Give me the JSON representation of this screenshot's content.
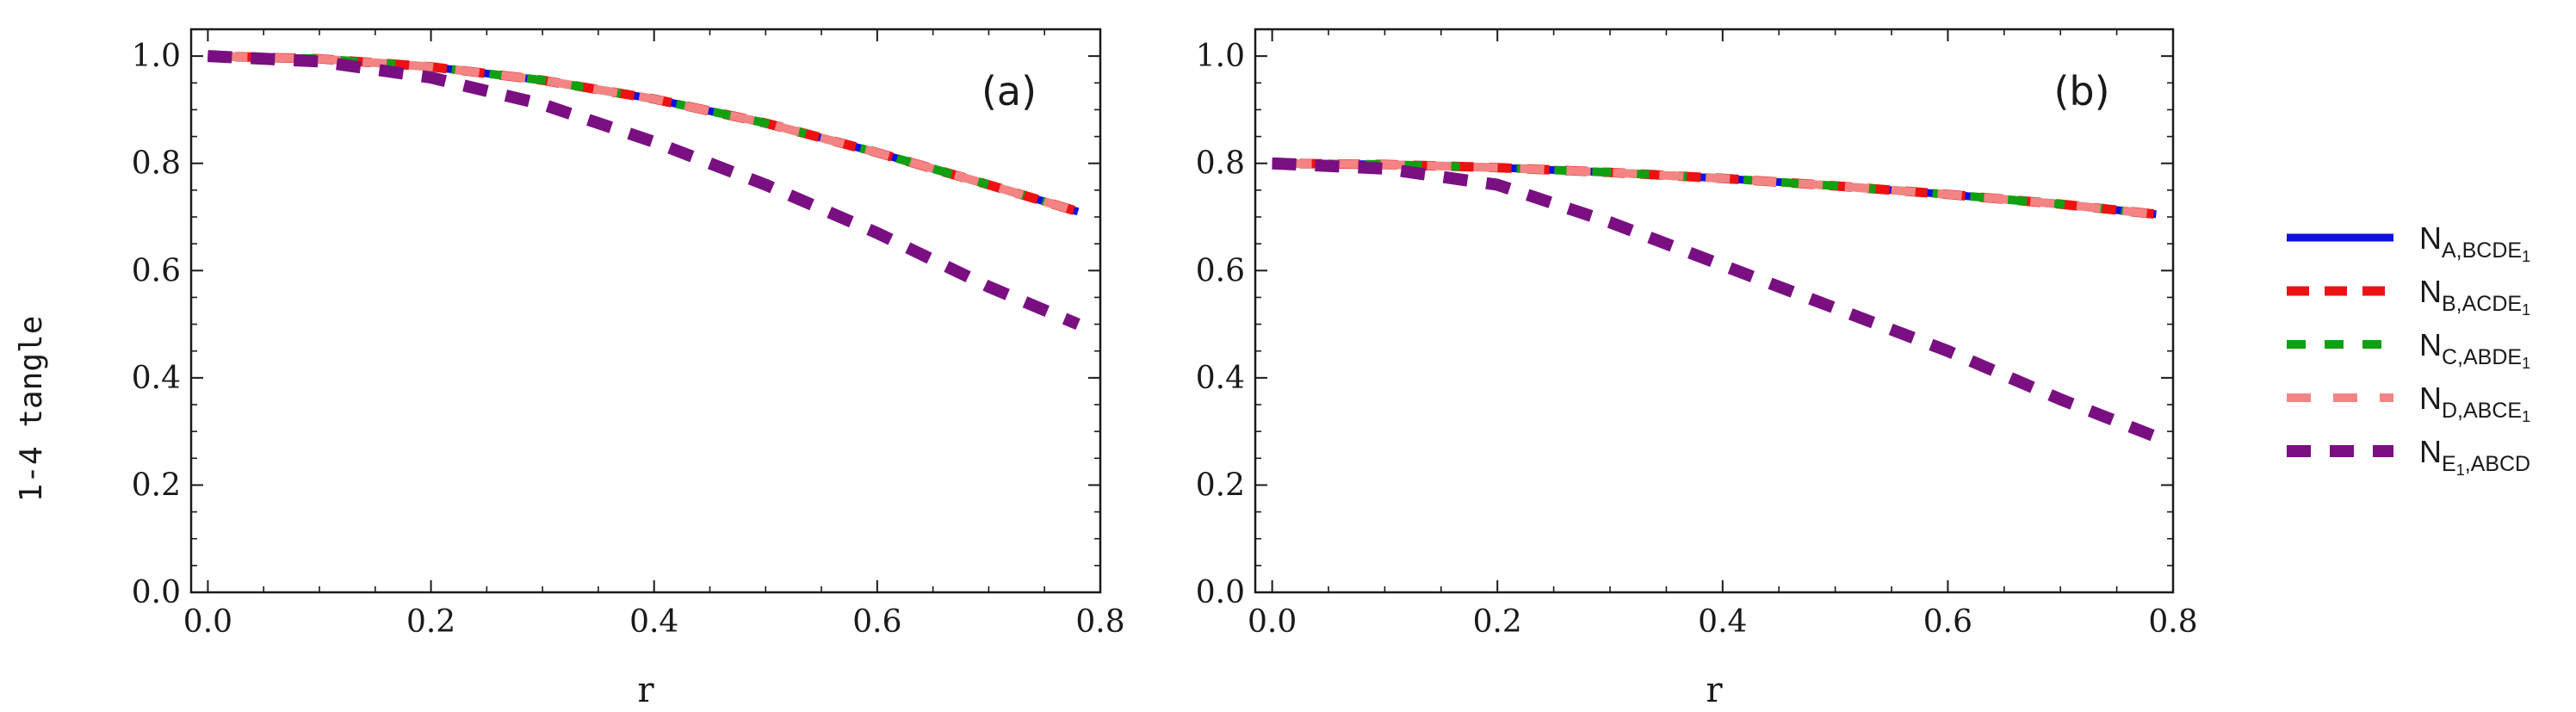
{
  "figure": {
    "ylabel": "1-4 tangle"
  },
  "legend": {
    "entries": [
      {
        "base": "N",
        "sub": "A,BCDE",
        "subsub": "1",
        "color": "#1010e0",
        "dash": "solid",
        "series_key": "A"
      },
      {
        "base": "N",
        "sub": "B,ACDE",
        "subsub": "1",
        "color": "#ee1111",
        "dash": "dash",
        "series_key": "B"
      },
      {
        "base": "N",
        "sub": "C,ABDE",
        "subsub": "1",
        "color": "#11a011",
        "dash": "dash",
        "series_key": "C"
      },
      {
        "base": "N",
        "sub": "D,ABCE",
        "subsub": "1",
        "color": "#f48484",
        "dash": "dash",
        "series_key": "D"
      },
      {
        "base": "N",
        "sub": "E",
        "subsub": "1",
        "tail": ",ABCD",
        "color": "#7a0f82",
        "dash": "dash",
        "series_key": "E"
      }
    ]
  },
  "chart_data": [
    {
      "type": "line",
      "panel_label": "(a)",
      "xlabel": "r",
      "ylabel": "1-4 tangle",
      "xlim": [
        -0.015,
        0.8
      ],
      "ylim": [
        0.0,
        1.05
      ],
      "xticks": [
        "0.0",
        "0.2",
        "0.4",
        "0.6",
        "0.8"
      ],
      "yticks": [
        "0.0",
        "0.2",
        "0.4",
        "0.6",
        "0.8",
        "1.0"
      ],
      "x": [
        0.0,
        0.1,
        0.2,
        0.3,
        0.4,
        0.5,
        0.6,
        0.7,
        0.78
      ],
      "series": [
        {
          "name": "N_A,BCDE1",
          "values": [
            1.0,
            0.995,
            0.98,
            0.955,
            0.92,
            0.875,
            0.82,
            0.76,
            0.71
          ]
        },
        {
          "name": "N_B,ACDE1",
          "values": [
            1.0,
            0.995,
            0.98,
            0.955,
            0.92,
            0.875,
            0.82,
            0.76,
            0.71
          ]
        },
        {
          "name": "N_C,ABDE1",
          "values": [
            1.0,
            0.995,
            0.98,
            0.955,
            0.92,
            0.875,
            0.82,
            0.76,
            0.71
          ]
        },
        {
          "name": "N_D,ABCE1",
          "values": [
            1.0,
            0.995,
            0.98,
            0.955,
            0.92,
            0.875,
            0.82,
            0.76,
            0.71
          ]
        },
        {
          "name": "N_E1,ABCD",
          "values": [
            1.0,
            0.99,
            0.96,
            0.91,
            0.84,
            0.76,
            0.67,
            0.57,
            0.5
          ]
        }
      ]
    },
    {
      "type": "line",
      "panel_label": "(b)",
      "xlabel": "r",
      "ylabel": "1-4 tangle",
      "xlim": [
        -0.015,
        0.8
      ],
      "ylim": [
        0.0,
        1.05
      ],
      "xticks": [
        "0.0",
        "0.2",
        "0.4",
        "0.6",
        "0.8"
      ],
      "yticks": [
        "0.0",
        "0.2",
        "0.4",
        "0.6",
        "0.8",
        "1.0"
      ],
      "x": [
        0.0,
        0.1,
        0.2,
        0.3,
        0.4,
        0.5,
        0.6,
        0.7,
        0.785
      ],
      "series": [
        {
          "name": "N_A,BCDE1",
          "values": [
            0.8,
            0.798,
            0.792,
            0.783,
            0.772,
            0.758,
            0.742,
            0.724,
            0.705
          ]
        },
        {
          "name": "N_B,ACDE1",
          "values": [
            0.8,
            0.798,
            0.792,
            0.783,
            0.772,
            0.758,
            0.742,
            0.724,
            0.705
          ]
        },
        {
          "name": "N_C,ABDE1",
          "values": [
            0.8,
            0.798,
            0.792,
            0.783,
            0.772,
            0.758,
            0.742,
            0.724,
            0.705
          ]
        },
        {
          "name": "N_D,ABCE1",
          "values": [
            0.8,
            0.798,
            0.792,
            0.783,
            0.772,
            0.758,
            0.742,
            0.724,
            0.705
          ]
        },
        {
          "name": "N_E1,ABCD",
          "values": [
            0.8,
            0.79,
            0.76,
            0.69,
            0.61,
            0.53,
            0.45,
            0.36,
            0.29
          ]
        }
      ]
    }
  ]
}
